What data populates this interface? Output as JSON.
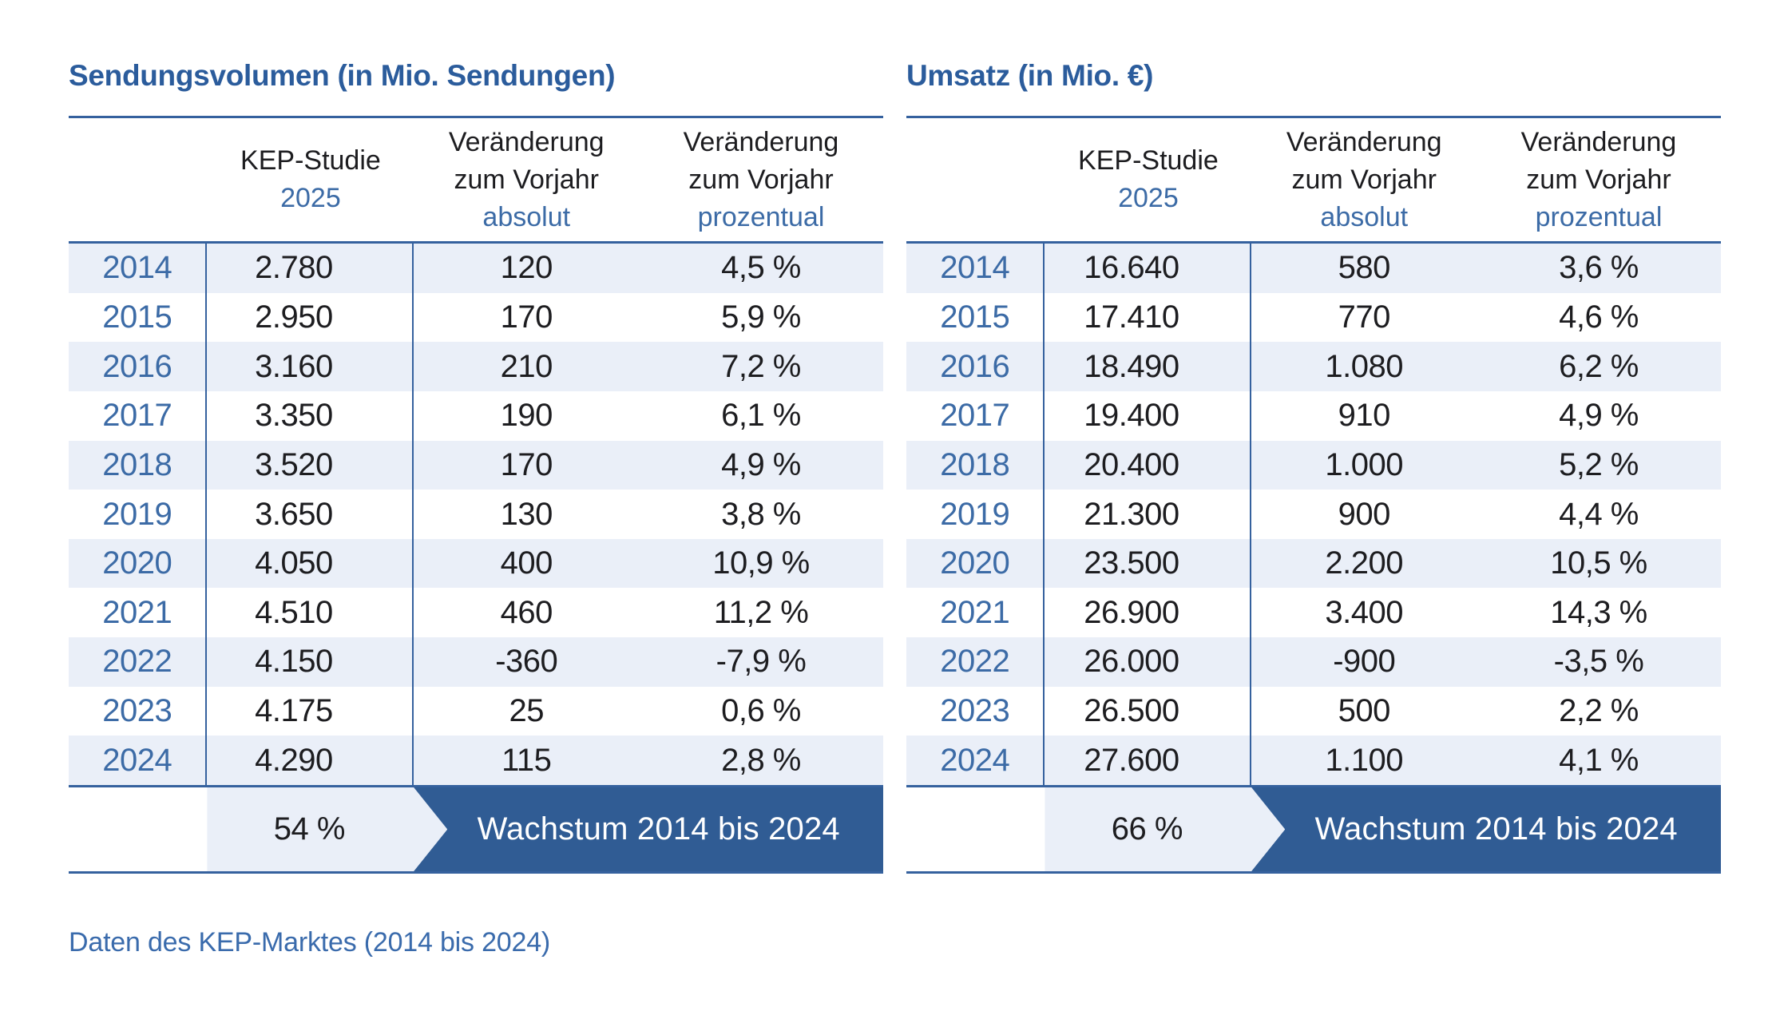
{
  "colors": {
    "page_bg": "#FFFFFF",
    "title_blue": "#2B5C9C",
    "accent_blue": "#3C6BA6",
    "rule_blue": "#35619E",
    "row_alt_bg": "#EAEFF8",
    "banner_bg": "#305C94",
    "banner_text": "#FFFFFF",
    "body_text": "#1D1D20"
  },
  "tables": [
    {
      "title": "Sendungsvolumen (in Mio. Sendungen)",
      "header": {
        "study_label": "KEP-Studie",
        "study_year": "2025",
        "change_line1": "Veränderung",
        "change_line2": "zum Vorjahr",
        "absolute_label": "absolut",
        "percent_label": "prozentual"
      },
      "rows": [
        {
          "year": "2014",
          "study_value": "2.780",
          "change_abs": "120",
          "change_pct": "4,5 %"
        },
        {
          "year": "2015",
          "study_value": "2.950",
          "change_abs": "170",
          "change_pct": "5,9 %"
        },
        {
          "year": "2016",
          "study_value": "3.160",
          "change_abs": "210",
          "change_pct": "7,2 %"
        },
        {
          "year": "2017",
          "study_value": "3.350",
          "change_abs": "190",
          "change_pct": "6,1 %"
        },
        {
          "year": "2018",
          "study_value": "3.520",
          "change_abs": "170",
          "change_pct": "4,9 %"
        },
        {
          "year": "2019",
          "study_value": "3.650",
          "change_abs": "130",
          "change_pct": "3,8 %"
        },
        {
          "year": "2020",
          "study_value": "4.050",
          "change_abs": "400",
          "change_pct": "10,9 %"
        },
        {
          "year": "2021",
          "study_value": "4.510",
          "change_abs": "460",
          "change_pct": "11,2 %"
        },
        {
          "year": "2022",
          "study_value": "4.150",
          "change_abs": "-360",
          "change_pct": "-7,9 %"
        },
        {
          "year": "2023",
          "study_value": "4.175",
          "change_abs": "25",
          "change_pct": "0,6 %"
        },
        {
          "year": "2024",
          "study_value": "4.290",
          "change_abs": "115",
          "change_pct": "2,8 %"
        }
      ],
      "summary": {
        "growth_value": "54 %",
        "growth_label": "Wachstum 2014 bis 2024"
      }
    },
    {
      "title": "Umsatz (in Mio. €)",
      "header": {
        "study_label": "KEP-Studie",
        "study_year": "2025",
        "change_line1": "Veränderung",
        "change_line2": "zum Vorjahr",
        "absolute_label": "absolut",
        "percent_label": "prozentual"
      },
      "rows": [
        {
          "year": "2014",
          "study_value": "16.640",
          "change_abs": "580",
          "change_pct": "3,6 %"
        },
        {
          "year": "2015",
          "study_value": "17.410",
          "change_abs": "770",
          "change_pct": "4,6 %"
        },
        {
          "year": "2016",
          "study_value": "18.490",
          "change_abs": "1.080",
          "change_pct": "6,2 %"
        },
        {
          "year": "2017",
          "study_value": "19.400",
          "change_abs": "910",
          "change_pct": "4,9 %"
        },
        {
          "year": "2018",
          "study_value": "20.400",
          "change_abs": "1.000",
          "change_pct": "5,2 %"
        },
        {
          "year": "2019",
          "study_value": "21.300",
          "change_abs": "900",
          "change_pct": "4,4 %"
        },
        {
          "year": "2020",
          "study_value": "23.500",
          "change_abs": "2.200",
          "change_pct": "10,5 %"
        },
        {
          "year": "2021",
          "study_value": "26.900",
          "change_abs": "3.400",
          "change_pct": "14,3 %"
        },
        {
          "year": "2022",
          "study_value": "26.000",
          "change_abs": "-900",
          "change_pct": "-3,5 %"
        },
        {
          "year": "2023",
          "study_value": "26.500",
          "change_abs": "500",
          "change_pct": "2,2 %"
        },
        {
          "year": "2024",
          "study_value": "27.600",
          "change_abs": "1.100",
          "change_pct": "4,1 %"
        }
      ],
      "summary": {
        "growth_value": "66 %",
        "growth_label": "Wachstum 2014 bis 2024"
      }
    }
  ],
  "footer": {
    "caption": "Daten des KEP-Marktes (2014 bis 2024)"
  },
  "chart_data": [
    {
      "type": "table",
      "title": "Sendungsvolumen (in Mio. Sendungen)",
      "columns": [
        "Jahr",
        "KEP-Studie 2025",
        "Veränderung zum Vorjahr absolut",
        "Veränderung zum Vorjahr prozentual"
      ],
      "years": [
        2014,
        2015,
        2016,
        2017,
        2018,
        2019,
        2020,
        2021,
        2022,
        2023,
        2024
      ],
      "values": [
        2780,
        2950,
        3160,
        3350,
        3520,
        3650,
        4050,
        4510,
        4150,
        4175,
        4290
      ],
      "change_absolute": [
        120,
        170,
        210,
        190,
        170,
        130,
        400,
        460,
        -360,
        25,
        115
      ],
      "change_percent": [
        4.5,
        5.9,
        7.2,
        6.1,
        4.9,
        3.8,
        10.9,
        11.2,
        -7.9,
        0.6,
        2.8
      ],
      "growth_2014_2024_percent": 54
    },
    {
      "type": "table",
      "title": "Umsatz (in Mio. €)",
      "columns": [
        "Jahr",
        "KEP-Studie 2025",
        "Veränderung zum Vorjahr absolut",
        "Veränderung zum Vorjahr prozentual"
      ],
      "years": [
        2014,
        2015,
        2016,
        2017,
        2018,
        2019,
        2020,
        2021,
        2022,
        2023,
        2024
      ],
      "values": [
        16640,
        17410,
        18490,
        19400,
        20400,
        21300,
        23500,
        26900,
        26000,
        26500,
        27600
      ],
      "change_absolute": [
        580,
        770,
        1080,
        910,
        1000,
        900,
        2200,
        3400,
        -900,
        500,
        1100
      ],
      "change_percent": [
        3.6,
        4.6,
        6.2,
        4.9,
        5.2,
        4.4,
        10.5,
        14.3,
        -3.5,
        2.2,
        4.1
      ],
      "growth_2014_2024_percent": 66
    }
  ]
}
